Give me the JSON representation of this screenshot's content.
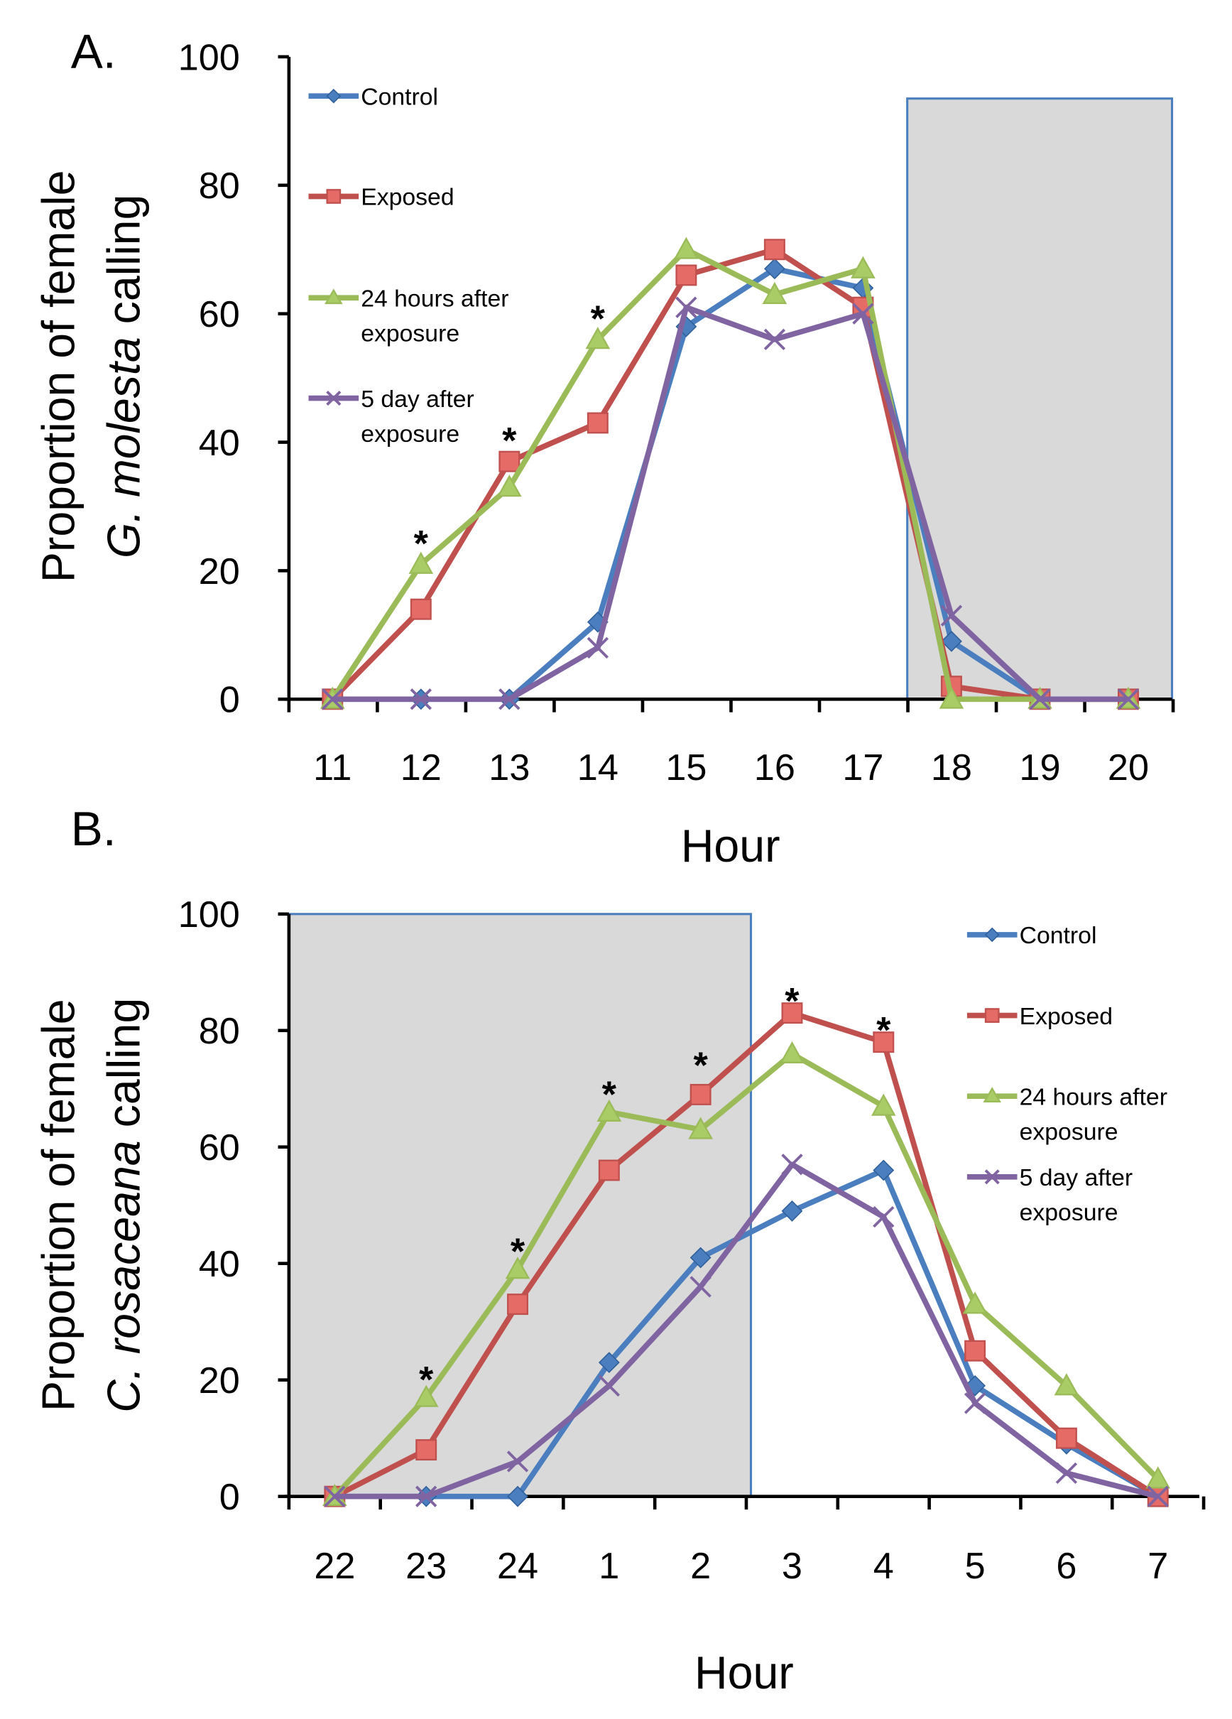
{
  "chart_data": [
    {
      "type": "line",
      "panel_label": "A.",
      "xlabel": "Hour",
      "ylabel_line1": "Proportion of female",
      "ylabel_species": "G. molesta",
      "ylabel_suffix": " calling",
      "ylim": [
        0,
        100
      ],
      "yticks": [
        "0",
        "20",
        "40",
        "60",
        "80",
        "100"
      ],
      "categories": [
        "11",
        "12",
        "13",
        "14",
        "15",
        "16",
        "17",
        "18",
        "19",
        "20"
      ],
      "shaded_region": {
        "from_index": 6.5,
        "to_index": 9.5,
        "ymax": 93.5
      },
      "legend_placement": "top-left",
      "series": [
        {
          "name": "Control",
          "legend_lines": [
            "Control"
          ],
          "color": "#4a7ebf",
          "marker": "diamond",
          "values": [
            0,
            0,
            0,
            12,
            58,
            67,
            64,
            9,
            0,
            0
          ]
        },
        {
          "name": "Exposed",
          "legend_lines": [
            "Exposed"
          ],
          "color": "#c0504d",
          "marker": "square",
          "values": [
            0,
            14,
            37,
            43,
            66,
            70,
            61,
            2,
            0,
            0
          ]
        },
        {
          "name": "24 hours after exposure",
          "legend_lines": [
            "24 hours after",
            "exposure"
          ],
          "color": "#9bbb59",
          "marker": "triangle",
          "values": [
            0,
            21,
            33,
            56,
            70,
            63,
            67,
            0,
            0,
            0
          ]
        },
        {
          "name": "5 day after exposure",
          "legend_lines": [
            "5 day after",
            "exposure"
          ],
          "color": "#8064a2",
          "marker": "x",
          "values": [
            0,
            0,
            0,
            8,
            61,
            56,
            60,
            13,
            0,
            0
          ]
        }
      ],
      "annotations": [
        {
          "text": "*",
          "category": "12",
          "y": 26
        },
        {
          "text": "*",
          "category": "13",
          "y": 42
        },
        {
          "text": "*",
          "category": "14",
          "y": 61
        }
      ]
    },
    {
      "type": "line",
      "panel_label": "B.",
      "xlabel": "Hour",
      "ylabel_line1": "Proportion of female",
      "ylabel_species": "C. rosaceana",
      "ylabel_suffix": " calling",
      "ylim": [
        0,
        100
      ],
      "yticks": [
        "0",
        "20",
        "40",
        "60",
        "80",
        "100"
      ],
      "categories": [
        "22",
        "23",
        "24",
        "1",
        "2",
        "3",
        "4",
        "5",
        "6",
        "7"
      ],
      "shaded_region": {
        "from_index": -0.5,
        "to_index": 4.55,
        "ymax": 100
      },
      "legend_placement": "top-right",
      "series": [
        {
          "name": "Control",
          "legend_lines": [
            "Control"
          ],
          "color": "#4a7ebf",
          "marker": "diamond",
          "values": [
            0,
            0,
            0,
            23,
            41,
            49,
            56,
            19,
            9,
            0
          ]
        },
        {
          "name": "Exposed",
          "legend_lines": [
            "Exposed"
          ],
          "color": "#c0504d",
          "marker": "square",
          "values": [
            0,
            8,
            33,
            56,
            69,
            83,
            78,
            25,
            10,
            0
          ]
        },
        {
          "name": "24 hours after exposure",
          "legend_lines": [
            "24 hours after",
            "exposure"
          ],
          "color": "#9bbb59",
          "marker": "triangle",
          "values": [
            0,
            17,
            39,
            66,
            63,
            76,
            67,
            33,
            19,
            3
          ]
        },
        {
          "name": "5 day after exposure",
          "legend_lines": [
            "5 day after",
            "exposure"
          ],
          "color": "#8064a2",
          "marker": "x",
          "values": [
            0,
            0,
            6,
            19,
            36,
            57,
            48,
            16,
            4,
            0
          ]
        }
      ],
      "annotations": [
        {
          "text": "*",
          "category": "23",
          "y": 22
        },
        {
          "text": "*",
          "category": "24",
          "y": 44
        },
        {
          "text": "*",
          "category": "1",
          "y": 71
        },
        {
          "text": "*",
          "category": "2",
          "y": 76
        },
        {
          "text": "*",
          "category": "3",
          "y": 87
        },
        {
          "text": "*",
          "category": "4",
          "y": 82
        }
      ]
    }
  ]
}
